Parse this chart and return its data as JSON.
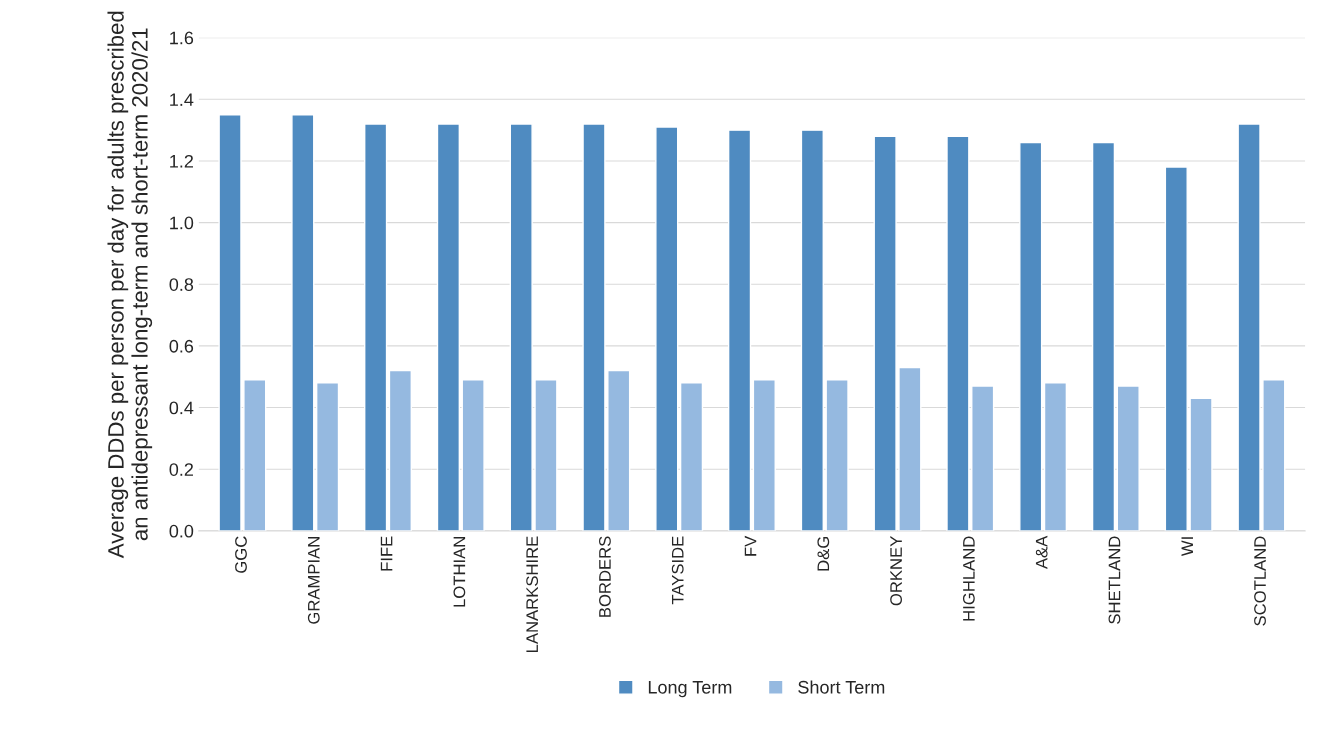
{
  "chart_data": {
    "type": "bar",
    "ylabel": "Average DDDs per person per day for adults prescribed an antidepressant long-term and short-term 2020/21",
    "categories": [
      "GGC",
      "GRAMPIAN",
      "FIFE",
      "LOTHIAN",
      "LANARKSHIRE",
      "BORDERS",
      "TAYSIDE",
      "FV",
      "D&G",
      "ORKNEY",
      "HIGHLAND",
      "A&A",
      "SHETLAND",
      "WI",
      "SCOTLAND"
    ],
    "series": [
      {
        "name": "Long Term",
        "color": "#4f8bc1",
        "values": [
          1.35,
          1.35,
          1.32,
          1.32,
          1.32,
          1.32,
          1.31,
          1.3,
          1.3,
          1.28,
          1.28,
          1.26,
          1.26,
          1.18,
          1.32
        ]
      },
      {
        "name": "Short Term",
        "color": "#95b9e0",
        "values": [
          0.49,
          0.48,
          0.52,
          0.49,
          0.49,
          0.52,
          0.48,
          0.49,
          0.49,
          0.53,
          0.47,
          0.48,
          0.47,
          0.43,
          0.49
        ]
      }
    ],
    "ylim": [
      0,
      1.6
    ],
    "yticks": [
      {
        "value": 0,
        "label": "0.0"
      },
      {
        "value": 0.2,
        "label": "0.2"
      },
      {
        "value": 0.4,
        "label": "0.4"
      },
      {
        "value": 0.6,
        "label": "0.6"
      },
      {
        "value": 0.8,
        "label": "0.8"
      },
      {
        "value": 1.0,
        "label": "1.0"
      },
      {
        "value": 1.2,
        "label": "1.2"
      },
      {
        "value": 1.4,
        "label": "1.4"
      },
      {
        "value": 1.6,
        "label": "1.6"
      }
    ],
    "grid": "y",
    "legend": "bottom"
  }
}
